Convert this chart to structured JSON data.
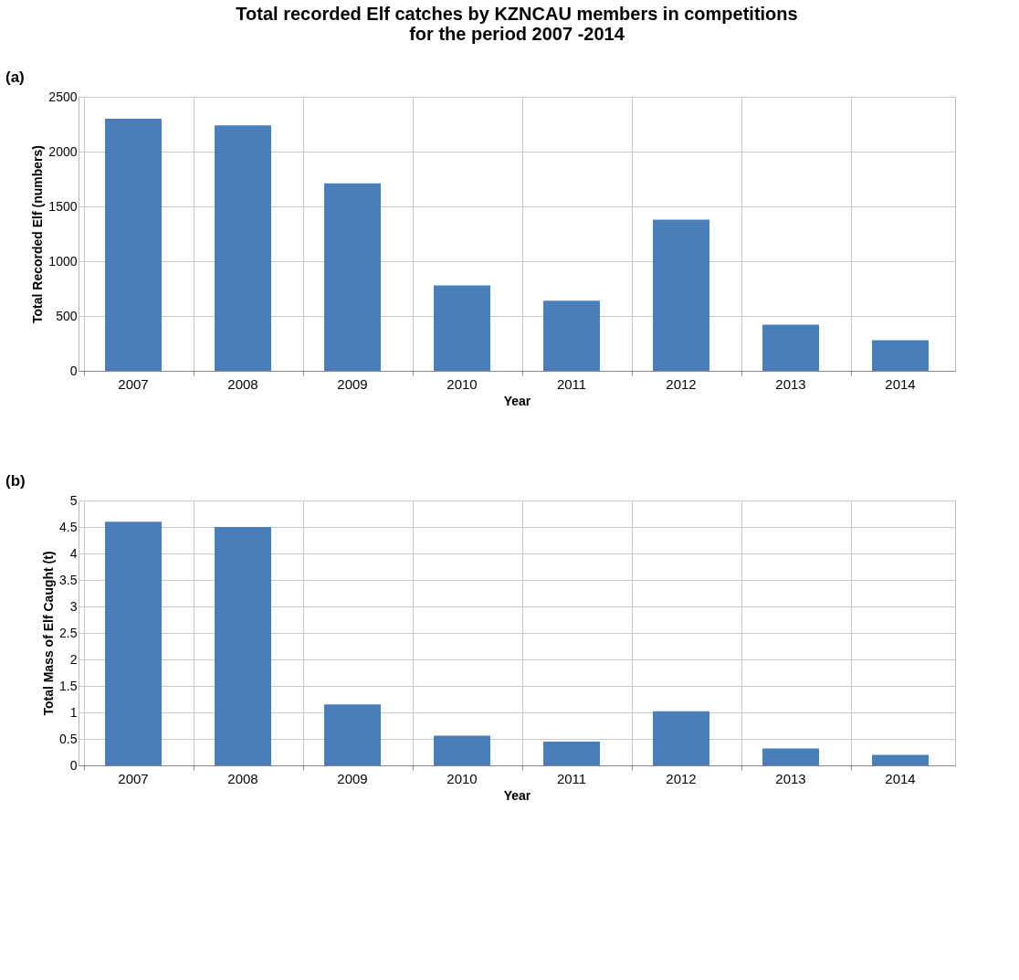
{
  "chart_data": [
    {
      "type": "bar",
      "title": "Total recorded Elf catches by KZNCAU members in competitions\nfor the period 2007 -2014",
      "annotations": [
        "(a)"
      ],
      "xlabel": "Year",
      "ylabel": "Total Recorded Elf (numbers)",
      "categories": [
        "2007",
        "2008",
        "2009",
        "2010",
        "2011",
        "2012",
        "2013",
        "2014"
      ],
      "values": [
        2300,
        2240,
        1710,
        780,
        640,
        1380,
        420,
        280
      ],
      "color": "#4a7ebb",
      "ylim": [
        0,
        2500
      ],
      "yticks": [
        0,
        500,
        1000,
        1500,
        2000,
        2500
      ],
      "grid": true
    },
    {
      "type": "bar",
      "annotations": [
        "(b)"
      ],
      "xlabel": "Year",
      "ylabel": "Total Mass of Elf Caught (t)",
      "categories": [
        "2007",
        "2008",
        "2009",
        "2010",
        "2011",
        "2012",
        "2013",
        "2014"
      ],
      "values": [
        4.6,
        4.5,
        1.15,
        0.56,
        0.45,
        1.02,
        0.32,
        0.2
      ],
      "color": "#4a7ebb",
      "ylim": [
        0,
        5
      ],
      "yticks": [
        0,
        0.5,
        1,
        1.5,
        2,
        2.5,
        3,
        3.5,
        4,
        4.5,
        5
      ],
      "grid": true
    }
  ]
}
